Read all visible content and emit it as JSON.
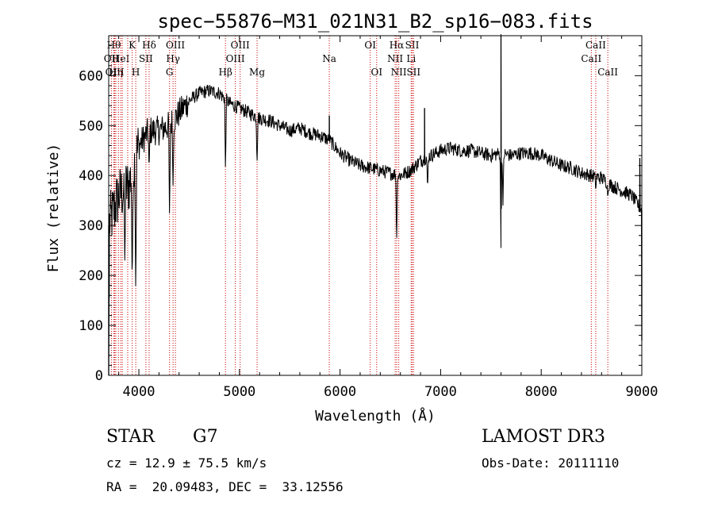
{
  "chart_data": {
    "type": "line",
    "title": "spec−55876−M31_021N31_B2_sp16−083.fits",
    "xlabel": "Wavelength (Å)",
    "ylabel": "Flux (relative)",
    "xlim": [
      3700,
      9000
    ],
    "ylim": [
      0,
      680
    ],
    "x_ticks": [
      4000,
      5000,
      6000,
      7000,
      8000,
      9000
    ],
    "x_tick_labels": [
      "4000",
      "5000",
      "6000",
      "7000",
      "8000",
      "9000"
    ],
    "y_ticks": [
      0,
      100,
      200,
      300,
      400,
      500,
      600
    ],
    "y_tick_labels": [
      "0",
      "100",
      "200",
      "300",
      "400",
      "500",
      "600"
    ],
    "grid": false,
    "line_color": "#000000",
    "marker_color": "#cc0000",
    "continuum": {
      "x": [
        3700,
        3800,
        3900,
        4000,
        4100,
        4200,
        4300,
        4400,
        4500,
        4600,
        4700,
        4800,
        4900,
        5000,
        5100,
        5200,
        5300,
        5400,
        5500,
        5600,
        5700,
        5800,
        5900,
        6000,
        6100,
        6200,
        6300,
        6400,
        6500,
        6600,
        6700,
        6800,
        6900,
        7000,
        7100,
        7200,
        7300,
        7400,
        7500,
        7600,
        7700,
        7800,
        7900,
        8000,
        8100,
        8200,
        8300,
        8400,
        8500,
        8600,
        8700,
        8800,
        8900,
        9000
      ],
      "y": [
        300,
        360,
        380,
        460,
        490,
        490,
        500,
        525,
        550,
        565,
        570,
        565,
        545,
        535,
        525,
        515,
        510,
        500,
        490,
        495,
        485,
        480,
        470,
        445,
        430,
        420,
        415,
        410,
        405,
        400,
        410,
        430,
        440,
        450,
        455,
        450,
        450,
        445,
        440,
        445,
        440,
        445,
        445,
        440,
        430,
        420,
        415,
        405,
        400,
        395,
        380,
        370,
        360,
        330
      ]
    },
    "absorption_features": [
      {
        "x": 3934,
        "y": 160
      },
      {
        "x": 3969,
        "y": 150
      },
      {
        "x": 3860,
        "y": 230
      },
      {
        "x": 4102,
        "y": 405
      },
      {
        "x": 4305,
        "y": 300
      },
      {
        "x": 4340,
        "y": 380
      },
      {
        "x": 4861,
        "y": 400
      },
      {
        "x": 5175,
        "y": 420
      },
      {
        "x": 5893,
        "y": 470
      },
      {
        "x": 6563,
        "y": 260
      },
      {
        "x": 6870,
        "y": 370
      },
      {
        "x": 7600,
        "y": 255
      },
      {
        "x": 7620,
        "y": 340
      },
      {
        "x": 8542,
        "y": 370
      },
      {
        "x": 8662,
        "y": 355
      }
    ],
    "spikes": [
      {
        "x": 3700,
        "y": 0
      },
      {
        "x": 3705,
        "y": 155
      },
      {
        "x": 5893,
        "y": 520
      },
      {
        "x": 6840,
        "y": 535
      },
      {
        "x": 7600,
        "y": 690
      },
      {
        "x": 8980,
        "y": 435
      },
      {
        "x": 9000,
        "y": 70
      }
    ],
    "line_markers": [
      {
        "x": 3727,
        "row": 1,
        "label": "OII"
      },
      {
        "x": 3751,
        "row": 0,
        "label": "Hθ"
      },
      {
        "x": 3760,
        "row": 2,
        "label": "OIII"
      },
      {
        "x": 3771,
        "row": 2,
        "label": "Hη"
      },
      {
        "x": 3797,
        "row": 0,
        "label": ""
      },
      {
        "x": 3820,
        "row": 1,
        "label": "HeI"
      },
      {
        "x": 3835,
        "row": 0,
        "label": ""
      },
      {
        "x": 3889,
        "row": 2,
        "label": ""
      },
      {
        "x": 3934,
        "row": 0,
        "label": "K"
      },
      {
        "x": 3969,
        "row": 2,
        "label": "H"
      },
      {
        "x": 4070,
        "row": 1,
        "label": "SII"
      },
      {
        "x": 4102,
        "row": 0,
        "label": "Hδ"
      },
      {
        "x": 4305,
        "row": 2,
        "label": "G"
      },
      {
        "x": 4340,
        "row": 1,
        "label": "Hγ"
      },
      {
        "x": 4363,
        "row": 0,
        "label": "OIII"
      },
      {
        "x": 4861,
        "row": 2,
        "label": "Hβ"
      },
      {
        "x": 4959,
        "row": 1,
        "label": "OIII"
      },
      {
        "x": 5007,
        "row": 0,
        "label": "OIII"
      },
      {
        "x": 5175,
        "row": 2,
        "label": "Mg"
      },
      {
        "x": 5893,
        "row": 1,
        "label": "Na"
      },
      {
        "x": 6300,
        "row": 0,
        "label": "OI"
      },
      {
        "x": 6364,
        "row": 2,
        "label": "OI"
      },
      {
        "x": 6548,
        "row": 1,
        "label": "NII"
      },
      {
        "x": 6563,
        "row": 0,
        "label": "Hα"
      },
      {
        "x": 6584,
        "row": 2,
        "label": "NII"
      },
      {
        "x": 6707,
        "row": 1,
        "label": "Li"
      },
      {
        "x": 6717,
        "row": 0,
        "label": "SII"
      },
      {
        "x": 6731,
        "row": 2,
        "label": "SII"
      },
      {
        "x": 8498,
        "row": 1,
        "label": "CaII"
      },
      {
        "x": 8542,
        "row": 0,
        "label": "CaII"
      },
      {
        "x": 8662,
        "row": 2,
        "label": "CaII"
      }
    ]
  },
  "info": {
    "object_class": "STAR",
    "subclass": "G7",
    "survey": "LAMOST DR3",
    "redshift_line": "cz = 12.9 ± 75.5 km/s",
    "obs_date_line": "Obs-Date: 20111110",
    "coords_line": "RA =  20.09483, DEC =  33.12556"
  }
}
